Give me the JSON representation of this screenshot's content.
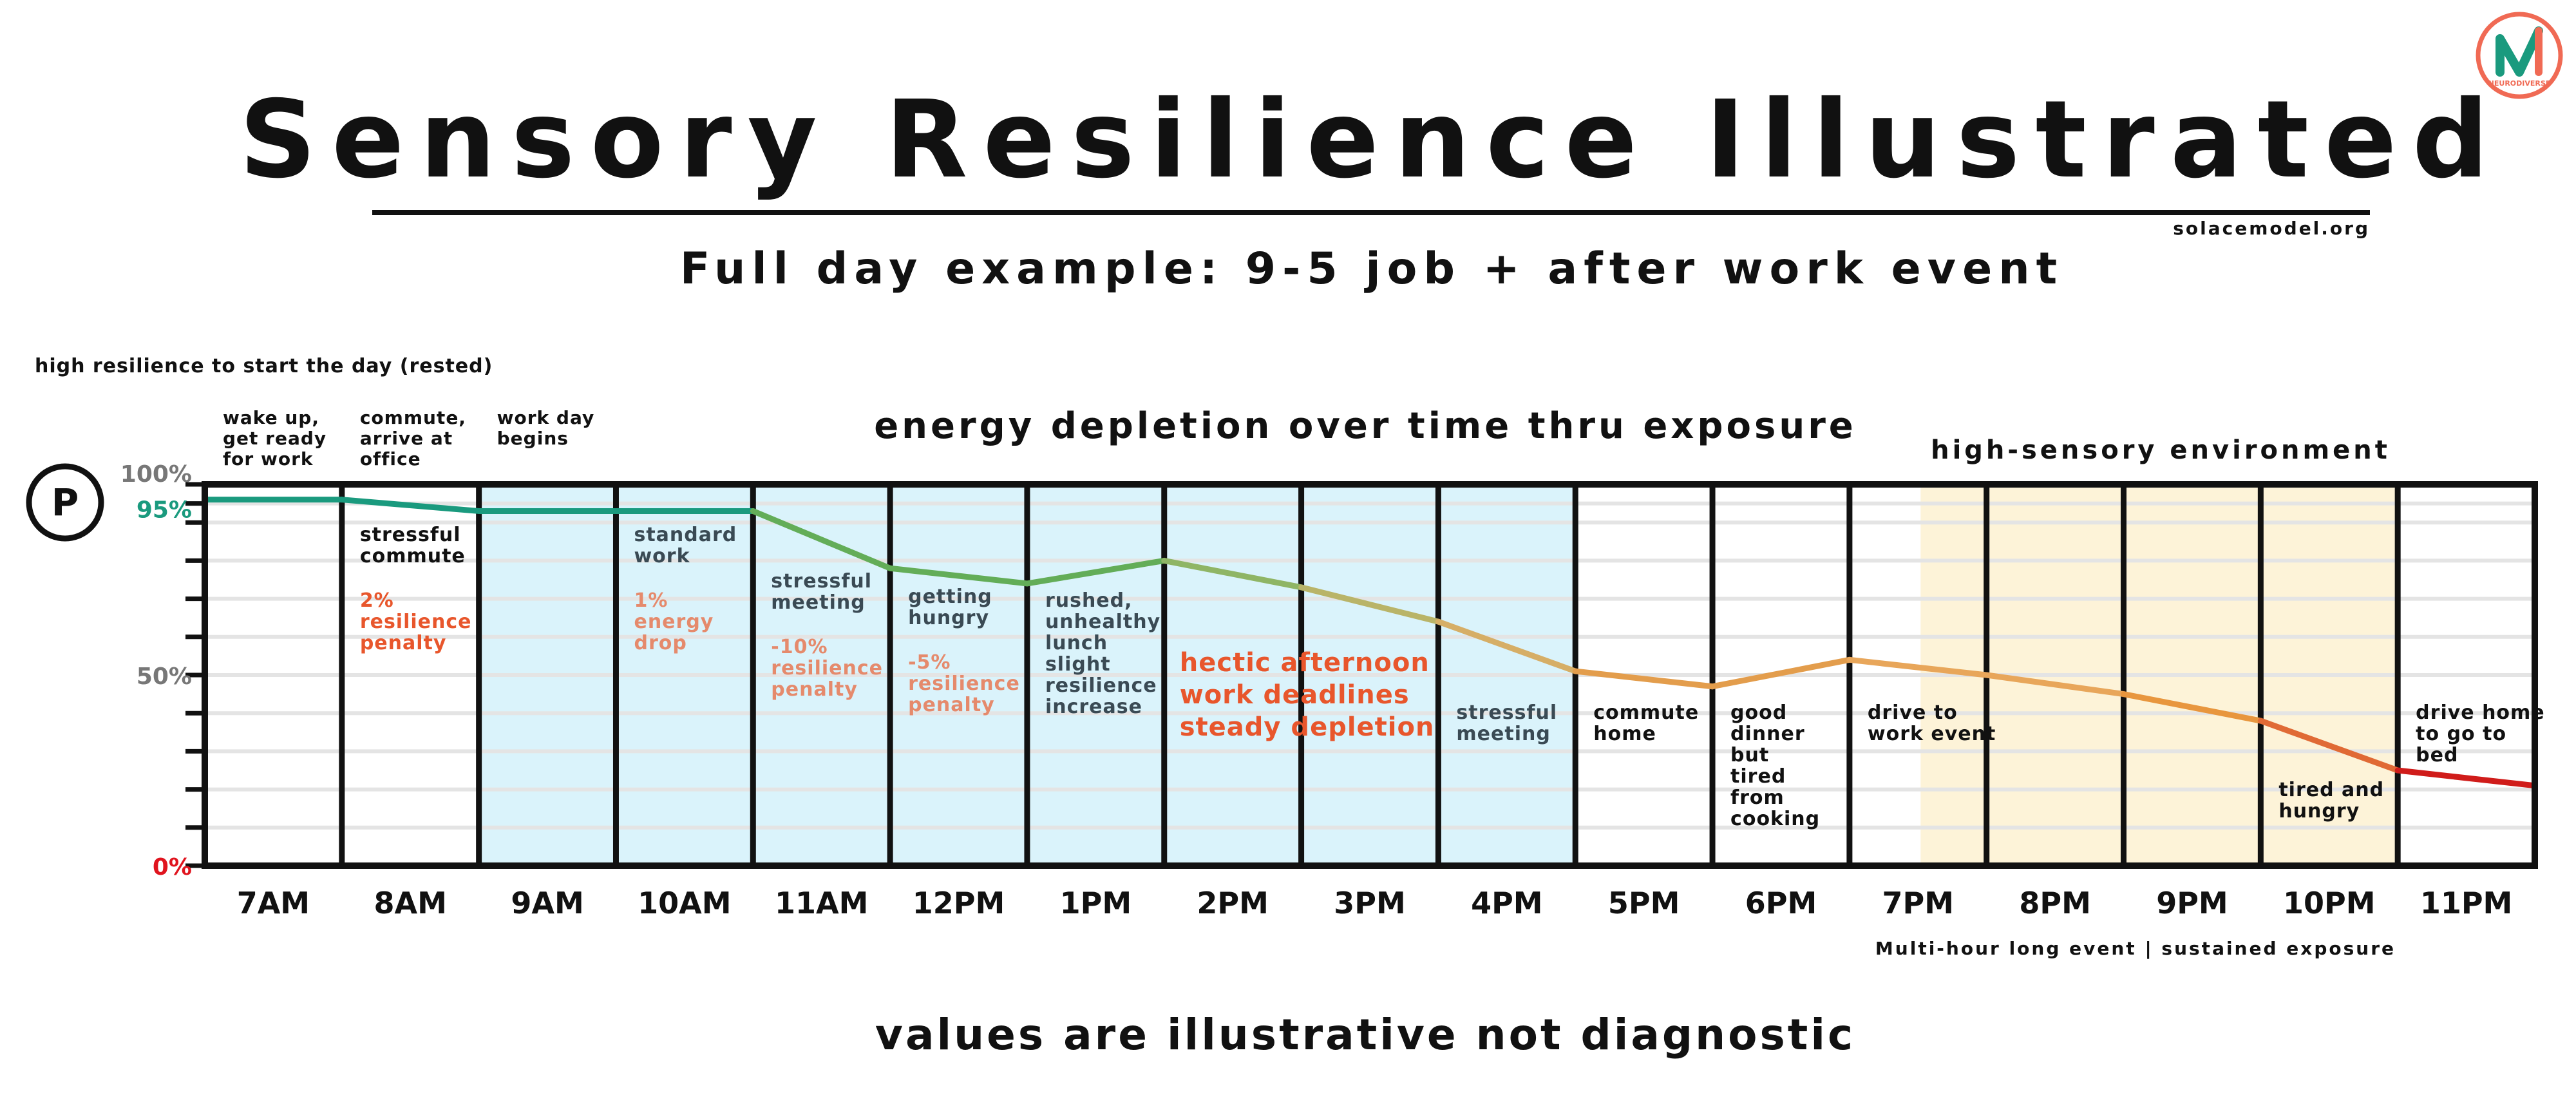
{
  "header": {
    "title": "Sensory Resilience Illustrated",
    "source": "solacemodel.org",
    "subtitle": "Full day example:  9-5 job + after work event",
    "logo_label": "NEURODIVERSE"
  },
  "footer": {
    "note": "values are illustrative not diagnostic",
    "event_note": "Multi-hour long event | sustained exposure"
  },
  "colors": {
    "background": "#ffffff",
    "work_hours_shade": "#daf3fb",
    "event_shade": "#fdf3d8",
    "grid": "#e4e4e4",
    "frame": "#111111",
    "penalty_text": "#e8562c",
    "tick_gray": "#777777",
    "tick_95": "#1a9a7e",
    "tick_zero": "#e0141e",
    "logo_teal": "#1a9a7e",
    "logo_coral": "#f06a54"
  },
  "chart_data": {
    "type": "line",
    "title": "energy depletion over time thru exposure",
    "start_note": "high resilience to start the day (rested)",
    "event_label": "high-sensory environment",
    "badge": "P",
    "categories": [
      "7AM",
      "8AM",
      "9AM",
      "10AM",
      "11AM",
      "12PM",
      "1PM",
      "2PM",
      "3PM",
      "4PM",
      "5PM",
      "6PM",
      "7PM",
      "8PM",
      "9PM",
      "10PM",
      "11PM"
    ],
    "x_range": [
      7,
      24
    ],
    "ylim": [
      0,
      100
    ],
    "y_ticks": [
      {
        "value": 100,
        "label": "100%",
        "color": "#777777"
      },
      {
        "value": 95,
        "label": "95%",
        "color": "#1a9a7e"
      },
      {
        "value": 50,
        "label": "50%",
        "color": "#777777"
      },
      {
        "value": 0,
        "label": "0%",
        "color": "#e0141e"
      }
    ],
    "minor_ticks": [
      90,
      80,
      70,
      60,
      40,
      30,
      20,
      10
    ],
    "grid": true,
    "work_hours_shading": [
      9,
      17
    ],
    "event_shading": [
      19.5,
      23
    ],
    "event_columns": [
      {
        "x0": 19.5,
        "x1": 20
      },
      {
        "x0": 20,
        "x1": 21
      },
      {
        "x0": 21,
        "x1": 22
      },
      {
        "x0": 22,
        "x1": 23
      }
    ],
    "series": [
      {
        "points": [
          {
            "x": 7,
            "y": 96
          },
          {
            "x": 8,
            "y": 96
          },
          {
            "x": 9,
            "y": 93
          },
          {
            "x": 10,
            "y": 93
          },
          {
            "x": 11,
            "y": 93
          },
          {
            "x": 12,
            "y": 78
          },
          {
            "x": 13,
            "y": 74
          },
          {
            "x": 14,
            "y": 80
          },
          {
            "x": 15,
            "y": 73
          },
          {
            "x": 16,
            "y": 64
          },
          {
            "x": 17,
            "y": 51
          },
          {
            "x": 18,
            "y": 47
          },
          {
            "x": 19,
            "y": 54
          },
          {
            "x": 20,
            "y": 50
          },
          {
            "x": 21,
            "y": 45
          },
          {
            "x": 22,
            "y": 38
          },
          {
            "x": 23,
            "y": 25
          },
          {
            "x": 24,
            "y": 21
          }
        ],
        "segment_colors": [
          "#1a9a7e",
          "#1a9a7e",
          "#1a9a7e",
          "#1a9a7e",
          "#63ad58",
          "#63ad58",
          "#63ad58",
          "#8fb565",
          "#b9b468",
          "#d6ae66",
          "#e39d4c",
          "#e39d4c",
          "#e8a65a",
          "#e8a65a",
          "#e8963e",
          "#e06a35",
          "#d01c1a"
        ]
      }
    ],
    "column_labels": [
      {
        "hour": 7,
        "top": "wake up,\nget ready\nfor work",
        "note": "",
        "penalty": ""
      },
      {
        "hour": 8,
        "top": "commute,\narrive at\noffice",
        "note": "stressful\ncommute",
        "penalty": "2%\nresilience\npenalty"
      },
      {
        "hour": 9,
        "top": "work day\nbegins",
        "note": "",
        "penalty": ""
      },
      {
        "hour": 10,
        "top": "",
        "note": "standard\nwork",
        "penalty": "1%\nenergy\ndrop"
      },
      {
        "hour": 11,
        "top": "",
        "note": "stressful\nmeeting",
        "penalty": "-10%\nresilience\npenalty"
      },
      {
        "hour": 12,
        "top": "",
        "note": "getting\nhungry",
        "penalty": "-5%\nresilience\npenalty"
      },
      {
        "hour": 13,
        "top": "",
        "note": "rushed,\nunhealthy\nlunch\n\nslight\nresilience\nincrease",
        "penalty": ""
      },
      {
        "hour": 14,
        "top": "",
        "note": "",
        "penalty": ""
      },
      {
        "hour": 15,
        "top": "",
        "note": "",
        "penalty": ""
      },
      {
        "hour": 16,
        "top": "",
        "note": "stressful\nmeeting",
        "penalty": ""
      },
      {
        "hour": 17,
        "top": "",
        "note": "commute\nhome",
        "penalty": ""
      },
      {
        "hour": 18,
        "top": "",
        "note": "good\ndinner\nbut\ntired\nfrom\ncooking",
        "penalty": ""
      },
      {
        "hour": 19,
        "top": "",
        "note": "drive to\nwork event",
        "penalty": ""
      },
      {
        "hour": 20,
        "top": "",
        "note": "",
        "penalty": ""
      },
      {
        "hour": 21,
        "top": "",
        "note": "",
        "penalty": ""
      },
      {
        "hour": 22,
        "top": "",
        "note": "tired and\nhungry",
        "penalty": ""
      },
      {
        "hour": 23,
        "top": "",
        "note": "drive home\nto go to\nbed",
        "penalty": ""
      }
    ],
    "annotation": {
      "hour": 14,
      "text": "hectic afternoon\nwork deadlines\nsteady depletion"
    }
  }
}
